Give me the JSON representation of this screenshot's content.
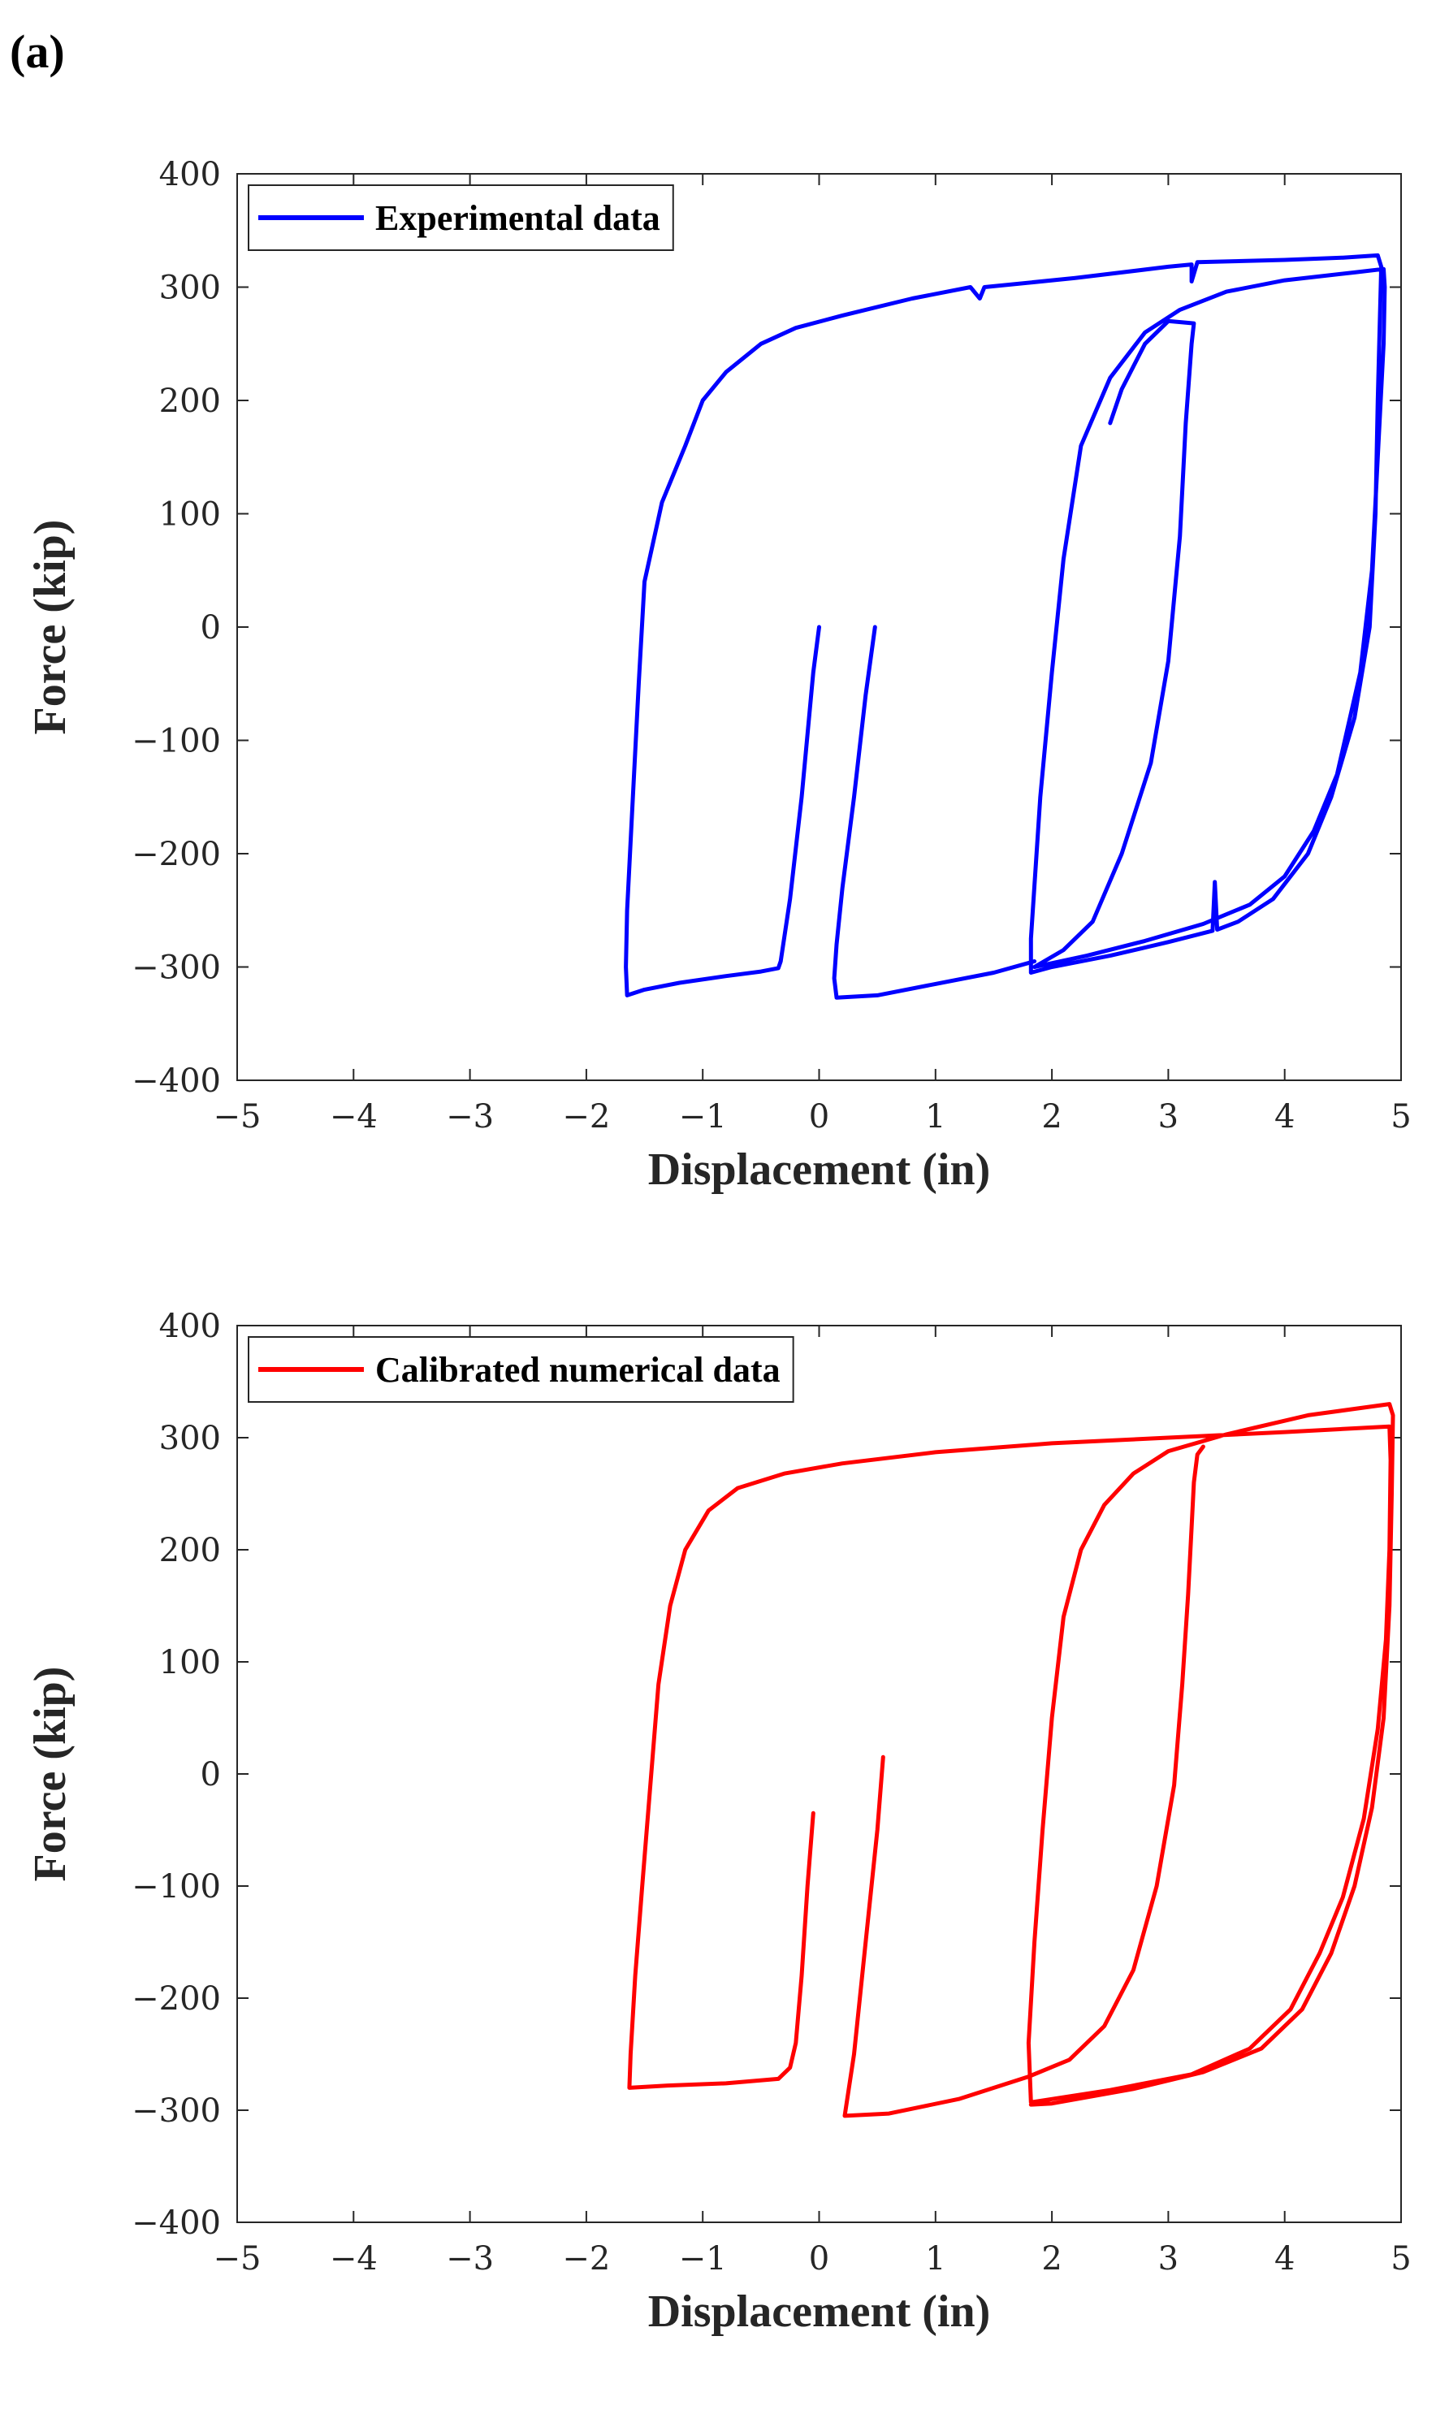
{
  "figure_label": "(a)",
  "chart_data": [
    {
      "type": "line",
      "xlabel": "Displacement (in)",
      "ylabel": "Force (kip)",
      "xlim": [
        -5,
        5
      ],
      "ylim": [
        -400,
        400
      ],
      "xticks": [
        "−5",
        "−4",
        "−3",
        "−2",
        "−1",
        "0",
        "1",
        "2",
        "3",
        "4",
        "5"
      ],
      "yticks": [
        "400",
        "300",
        "200",
        "100",
        "0",
        "−100",
        "−200",
        "−300",
        "−400"
      ],
      "grid": false,
      "legend_position": "top-left",
      "series": [
        {
          "name": "Experimental data",
          "color": "#0000ff",
          "segments": [
            [
              [
                0.0,
                0
              ],
              [
                -0.05,
                -40
              ],
              [
                -0.15,
                -150
              ],
              [
                -0.25,
                -240
              ],
              [
                -0.33,
                -295
              ],
              [
                -0.35,
                -301
              ],
              [
                -0.5,
                -304
              ],
              [
                -0.8,
                -308
              ],
              [
                -1.2,
                -314
              ],
              [
                -1.5,
                -320
              ],
              [
                -1.65,
                -325
              ],
              [
                -1.66,
                -300
              ],
              [
                -1.65,
                -250
              ],
              [
                -1.6,
                -150
              ],
              [
                -1.55,
                -50
              ],
              [
                -1.5,
                40
              ],
              [
                -1.35,
                110
              ],
              [
                -1.15,
                160
              ],
              [
                -1.0,
                200
              ],
              [
                -0.8,
                225
              ],
              [
                -0.5,
                250
              ],
              [
                -0.2,
                264
              ],
              [
                0.2,
                275
              ],
              [
                0.8,
                290
              ],
              [
                1.3,
                300
              ],
              [
                1.38,
                290
              ],
              [
                1.42,
                300
              ],
              [
                2.2,
                308
              ],
              [
                3.0,
                318
              ],
              [
                3.2,
                320
              ],
              [
                3.2,
                305
              ],
              [
                3.25,
                322
              ],
              [
                4.0,
                324
              ],
              [
                4.5,
                326
              ],
              [
                4.8,
                328
              ],
              [
                4.83,
                318
              ],
              [
                4.82,
                280
              ],
              [
                4.8,
                200
              ],
              [
                4.78,
                100
              ],
              [
                4.73,
                0
              ],
              [
                4.6,
                -80
              ],
              [
                4.4,
                -150
              ],
              [
                4.2,
                -200
              ],
              [
                3.9,
                -240
              ],
              [
                3.6,
                -260
              ],
              [
                3.42,
                -267
              ],
              [
                3.4,
                -225
              ],
              [
                3.38,
                -268
              ],
              [
                3.0,
                -278
              ],
              [
                2.5,
                -290
              ],
              [
                2.0,
                -300
              ],
              [
                1.82,
                -305
              ],
              [
                1.82,
                -275
              ],
              [
                1.9,
                -150
              ],
              [
                2.0,
                -40
              ],
              [
                2.1,
                60
              ],
              [
                2.25,
                160
              ],
              [
                2.5,
                220
              ],
              [
                2.8,
                260
              ],
              [
                3.1,
                280
              ],
              [
                3.5,
                296
              ],
              [
                4.0,
                306
              ],
              [
                4.6,
                313
              ],
              [
                4.85,
                316
              ],
              [
                4.86,
                300
              ],
              [
                4.85,
                250
              ],
              [
                4.8,
                150
              ],
              [
                4.75,
                50
              ],
              [
                4.65,
                -40
              ],
              [
                4.45,
                -130
              ],
              [
                4.25,
                -180
              ],
              [
                4.0,
                -220
              ],
              [
                3.7,
                -245
              ],
              [
                3.3,
                -262
              ],
              [
                2.8,
                -277
              ],
              [
                2.3,
                -290
              ],
              [
                1.85,
                -300
              ],
              [
                2.1,
                -285
              ],
              [
                2.35,
                -260
              ],
              [
                2.6,
                -200
              ],
              [
                2.85,
                -120
              ],
              [
                3.0,
                -30
              ],
              [
                3.1,
                80
              ],
              [
                3.15,
                180
              ],
              [
                3.2,
                250
              ],
              [
                3.22,
                268
              ],
              [
                3.0,
                270
              ],
              [
                2.8,
                250
              ],
              [
                2.6,
                210
              ],
              [
                2.5,
                180
              ]
            ],
            [
              [
                0.48,
                0
              ],
              [
                0.4,
                -60
              ],
              [
                0.3,
                -150
              ],
              [
                0.2,
                -230
              ],
              [
                0.15,
                -280
              ],
              [
                0.13,
                -310
              ],
              [
                0.15,
                -327
              ],
              [
                0.5,
                -325
              ],
              [
                1.0,
                -315
              ],
              [
                1.5,
                -305
              ],
              [
                1.85,
                -295
              ]
            ]
          ]
        }
      ]
    },
    {
      "type": "line",
      "xlabel": "Displacement (in)",
      "ylabel": "Force (kip)",
      "xlim": [
        -5,
        5
      ],
      "ylim": [
        -400,
        400
      ],
      "xticks": [
        "−5",
        "−4",
        "−3",
        "−2",
        "−1",
        "0",
        "1",
        "2",
        "3",
        "4",
        "5"
      ],
      "yticks": [
        "400",
        "300",
        "200",
        "100",
        "0",
        "−100",
        "−200",
        "−300",
        "−400"
      ],
      "grid": false,
      "legend_position": "top-left",
      "series": [
        {
          "name": "Calibrated numerical data",
          "color": "#ff0000",
          "segments": [
            [
              [
                -0.05,
                -35
              ],
              [
                -0.1,
                -100
              ],
              [
                -0.15,
                -180
              ],
              [
                -0.2,
                -240
              ],
              [
                -0.25,
                -262
              ],
              [
                -0.35,
                -272
              ],
              [
                -0.8,
                -276
              ],
              [
                -1.3,
                -278
              ],
              [
                -1.63,
                -280
              ],
              [
                -1.62,
                -250
              ],
              [
                -1.58,
                -180
              ],
              [
                -1.52,
                -100
              ],
              [
                -1.45,
                -10
              ],
              [
                -1.38,
                80
              ],
              [
                -1.28,
                150
              ],
              [
                -1.15,
                200
              ],
              [
                -0.95,
                235
              ],
              [
                -0.7,
                255
              ],
              [
                -0.3,
                268
              ],
              [
                0.2,
                277
              ],
              [
                1.0,
                287
              ],
              [
                2.0,
                295
              ],
              [
                3.0,
                300
              ],
              [
                4.0,
                305
              ],
              [
                4.9,
                310
              ],
              [
                4.91,
                280
              ],
              [
                4.9,
                200
              ],
              [
                4.87,
                120
              ],
              [
                4.8,
                40
              ],
              [
                4.68,
                -40
              ],
              [
                4.5,
                -110
              ],
              [
                4.3,
                -160
              ],
              [
                4.05,
                -210
              ],
              [
                3.7,
                -245
              ],
              [
                3.2,
                -268
              ],
              [
                2.5,
                -282
              ],
              [
                1.82,
                -293
              ],
              [
                1.8,
                -240
              ],
              [
                1.85,
                -150
              ],
              [
                1.92,
                -50
              ],
              [
                2.0,
                50
              ],
              [
                2.1,
                140
              ],
              [
                2.25,
                200
              ],
              [
                2.45,
                240
              ],
              [
                2.7,
                268
              ],
              [
                3.0,
                288
              ],
              [
                3.5,
                303
              ],
              [
                4.2,
                320
              ],
              [
                4.9,
                330
              ],
              [
                4.93,
                320
              ],
              [
                4.92,
                250
              ],
              [
                4.9,
                150
              ],
              [
                4.85,
                50
              ],
              [
                4.75,
                -30
              ],
              [
                4.6,
                -100
              ],
              [
                4.4,
                -160
              ],
              [
                4.15,
                -210
              ],
              [
                3.8,
                -245
              ],
              [
                3.3,
                -266
              ],
              [
                2.7,
                -281
              ],
              [
                2.0,
                -294
              ],
              [
                1.82,
                -295
              ]
            ],
            [
              [
                0.55,
                15
              ],
              [
                0.5,
                -50
              ],
              [
                0.4,
                -150
              ],
              [
                0.3,
                -250
              ],
              [
                0.22,
                -305
              ],
              [
                0.6,
                -303
              ],
              [
                1.2,
                -290
              ],
              [
                1.8,
                -270
              ],
              [
                2.15,
                -255
              ],
              [
                2.45,
                -225
              ],
              [
                2.7,
                -175
              ],
              [
                2.9,
                -100
              ],
              [
                3.05,
                -10
              ],
              [
                3.12,
                80
              ],
              [
                3.17,
                160
              ],
              [
                3.2,
                220
              ],
              [
                3.22,
                260
              ],
              [
                3.25,
                285
              ],
              [
                3.3,
                292
              ]
            ]
          ]
        }
      ]
    }
  ]
}
